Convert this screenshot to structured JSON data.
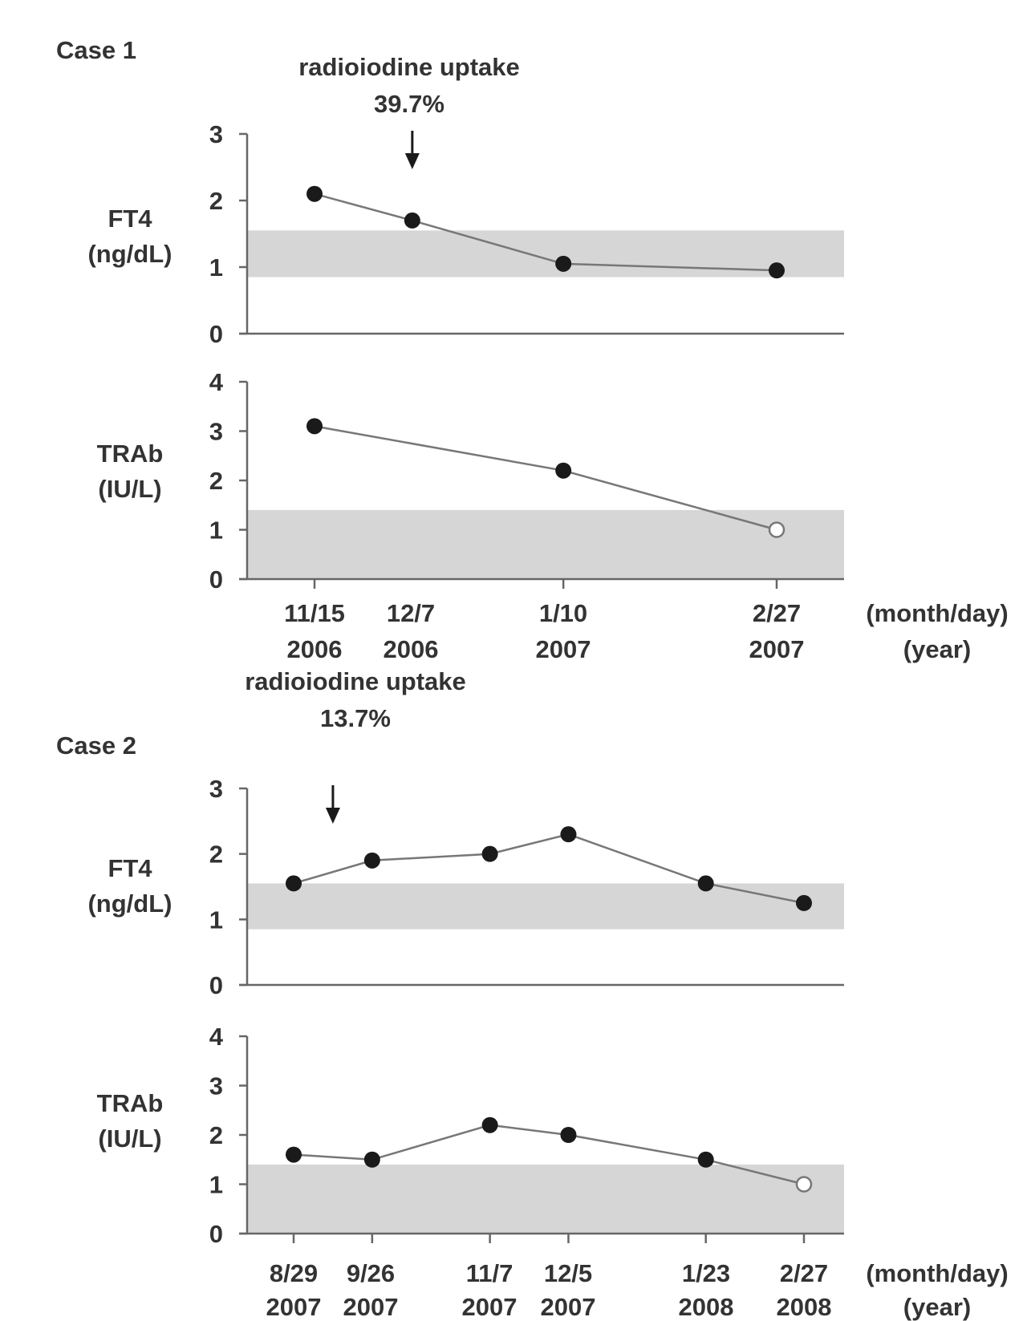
{
  "figure": {
    "cases": [
      {
        "case_label": "Case 1",
        "annotation": {
          "line1": "radioiodine uptake",
          "line2": "39.7%"
        },
        "date_axis": {
          "dates": [
            {
              "md": "11/15",
              "year": "2006"
            },
            {
              "md": "12/7",
              "year": "2006"
            },
            {
              "md": "1/10",
              "year": "2007"
            },
            {
              "md": "2/27",
              "year": "2007"
            }
          ],
          "unit_md": "(month/day)",
          "unit_year": "(year)"
        }
      },
      {
        "case_label": "Case 2",
        "annotation": {
          "line1": "radioiodine uptake",
          "line2": "13.7%"
        },
        "date_axis": {
          "dates": [
            {
              "md": "8/29",
              "year": "2007"
            },
            {
              "md": "9/26",
              "year": "2007"
            },
            {
              "md": "11/7",
              "year": "2007"
            },
            {
              "md": "12/5",
              "year": "2007"
            },
            {
              "md": "1/23",
              "year": "2008"
            },
            {
              "md": "2/27",
              "year": "2008"
            }
          ],
          "unit_md": "(month/day)",
          "unit_year": "(year)"
        }
      }
    ]
  },
  "chart_data": [
    {
      "type": "line",
      "title": "",
      "ylabel_line1": "FT4",
      "ylabel_line2": "(ng/dL)",
      "x": [
        "2006-11-15",
        "2006-12-07",
        "2007-01-10",
        "2007-02-27"
      ],
      "series": [
        {
          "values": [
            2.1,
            1.7,
            1.05,
            0.95
          ],
          "hollow": [
            false,
            false,
            false,
            false
          ]
        }
      ],
      "ylim": [
        0,
        3
      ],
      "yticks": [
        "0",
        "1",
        "2",
        "3"
      ],
      "reference_range": [
        0.85,
        1.55
      ],
      "annotation_x": "2006-12-07",
      "grid": false
    },
    {
      "type": "line",
      "title": "",
      "ylabel_line1": "TRAb",
      "ylabel_line2": "(IU/L)",
      "x": [
        "2006-11-15",
        "2007-01-10",
        "2007-02-27"
      ],
      "series": [
        {
          "values": [
            3.1,
            2.2,
            1.0
          ],
          "hollow": [
            false,
            false,
            true
          ]
        }
      ],
      "ylim": [
        0,
        4
      ],
      "yticks": [
        "0",
        "1",
        "2",
        "3",
        "4"
      ],
      "reference_range": [
        0,
        1.4
      ],
      "grid": false
    },
    {
      "type": "line",
      "title": "",
      "ylabel_line1": "FT4",
      "ylabel_line2": "(ng/dL)",
      "x": [
        "2007-08-29",
        "2007-09-26",
        "2007-11-07",
        "2007-12-05",
        "2008-01-23",
        "2008-02-27"
      ],
      "series": [
        {
          "values": [
            1.55,
            1.9,
            2.0,
            2.3,
            1.55,
            1.25
          ],
          "hollow": [
            false,
            false,
            false,
            false,
            false,
            false
          ]
        }
      ],
      "ylim": [
        0,
        3
      ],
      "yticks": [
        "0",
        "1",
        "2",
        "3"
      ],
      "reference_range": [
        0.85,
        1.55
      ],
      "annotation_x": "2007-09-12",
      "grid": false
    },
    {
      "type": "line",
      "title": "",
      "ylabel_line1": "TRAb",
      "ylabel_line2": "(IU/L)",
      "x": [
        "2007-08-29",
        "2007-09-26",
        "2007-11-07",
        "2007-12-05",
        "2008-01-23",
        "2008-02-27"
      ],
      "series": [
        {
          "values": [
            1.6,
            1.5,
            2.2,
            2.0,
            1.5,
            1.0
          ],
          "hollow": [
            false,
            false,
            false,
            false,
            false,
            true
          ]
        }
      ],
      "ylim": [
        0,
        4
      ],
      "yticks": [
        "0",
        "1",
        "2",
        "3",
        "4"
      ],
      "reference_range": [
        0,
        1.4
      ],
      "grid": false
    }
  ],
  "colors": {
    "band": "#d6d6d6",
    "axis": "#666666",
    "line": "#777777",
    "marker": "#1a1a1a",
    "text": "#333333"
  }
}
